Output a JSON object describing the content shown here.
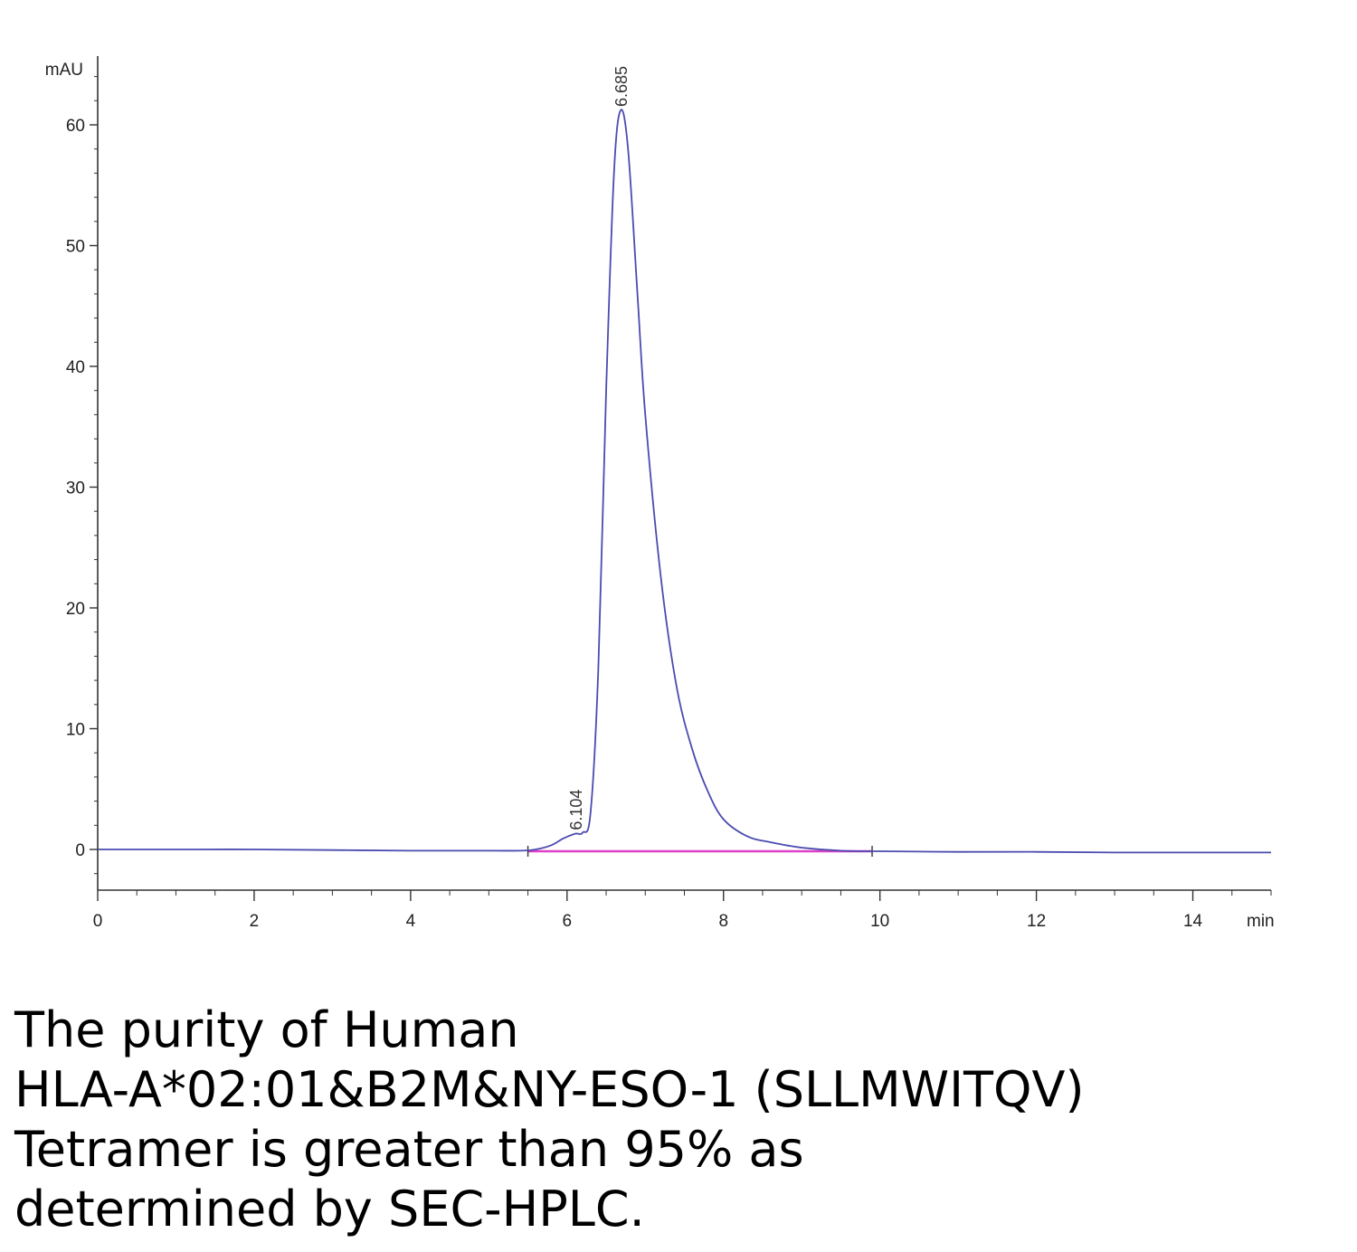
{
  "chart_data": {
    "type": "line",
    "xlabel": "min",
    "ylabel": "mAU",
    "xlim": [
      0,
      15
    ],
    "ylim": [
      -3.5,
      66
    ],
    "x_ticks": [
      0,
      2,
      4,
      6,
      8,
      10,
      12,
      14
    ],
    "y_ticks": [
      0,
      10,
      20,
      30,
      40,
      50,
      60
    ],
    "grid": false,
    "legend": "none",
    "colors": {
      "trace": "#4b4bb0",
      "baseline": "#e040c8",
      "axis": "#333333"
    },
    "series": [
      {
        "x": [
          0,
          1,
          2,
          3,
          4,
          4.8,
          5.4,
          5.6,
          5.8,
          5.95,
          6.104,
          6.2,
          6.3,
          6.4,
          6.5,
          6.6,
          6.685,
          6.78,
          6.9,
          7.0,
          7.2,
          7.4,
          7.6,
          7.8,
          8.0,
          8.3,
          8.6,
          9.0,
          9.5,
          10,
          11,
          12,
          13,
          14,
          15
        ],
        "y": [
          0,
          0,
          0,
          -0.05,
          -0.1,
          -0.1,
          -0.1,
          0,
          0.35,
          0.9,
          1.3,
          1.4,
          3.0,
          15,
          38,
          56,
          61.2,
          58,
          46,
          36,
          22.5,
          13.5,
          8.3,
          4.8,
          2.5,
          1.1,
          0.6,
          0.15,
          -0.1,
          -0.15,
          -0.2,
          -0.2,
          -0.25,
          -0.25,
          -0.25
        ]
      }
    ],
    "baseline": {
      "x": [
        5.5,
        9.9
      ],
      "y": [
        -0.15,
        -0.15
      ]
    },
    "peaks": [
      {
        "rt": 6.104,
        "label": "6.104",
        "height": 1.3
      },
      {
        "rt": 6.685,
        "label": "6.685",
        "height": 61.2
      }
    ]
  },
  "caption": {
    "lines": [
      "The purity of Human",
      "HLA-A*02:01&B2M&NY-ESO-1 (SLLMWITQV)",
      "Tetramer is greater than 95% as",
      "determined by SEC-HPLC."
    ]
  }
}
